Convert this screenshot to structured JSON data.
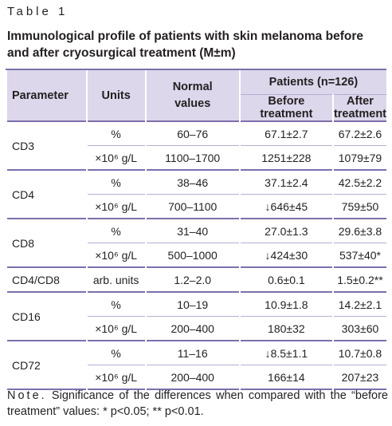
{
  "header": {
    "label": "Table 1",
    "title": "Immunological profile of patients with skin melanoma before and after cryosurgical treatment (M±m)"
  },
  "table": {
    "columns": {
      "parameter": "Parameter",
      "units": "Units",
      "normal": "Normal values",
      "patients": "Patients (n=126)",
      "before": "Before treatment",
      "after": "After treatment"
    },
    "groups": [
      {
        "parameter": "CD3",
        "rows": [
          [
            "%",
            "60–76",
            "67.1±2.7",
            "67.2±2.6"
          ],
          [
            "×10⁶ g/L",
            "1100–1700",
            "1251±228",
            "1079±79"
          ]
        ]
      },
      {
        "parameter": "CD4",
        "rows": [
          [
            "%",
            "38–46",
            "37.1±2.4",
            "42.5±2.2"
          ],
          [
            "×10⁶ g/L",
            "700–1100",
            "↓646±45",
            "759±50"
          ]
        ]
      },
      {
        "parameter": "CD8",
        "rows": [
          [
            "%",
            "31–40",
            "27.0±1.3",
            "29.6±3.8"
          ],
          [
            "×10⁶ g/L",
            "500–1000",
            "↓424±30",
            "537±40*"
          ]
        ]
      },
      {
        "parameter": "CD4/CD8",
        "rows": [
          [
            "arb. units",
            "1.2–2.0",
            "0.6±0.1",
            "1.5±0.2**"
          ]
        ]
      },
      {
        "parameter": "CD16",
        "rows": [
          [
            "%",
            "10–19",
            "10.9±1.8",
            "14.2±2.1"
          ],
          [
            "×10⁶ g/L",
            "200–400",
            "180±32",
            "303±60"
          ]
        ]
      },
      {
        "parameter": "CD72",
        "rows": [
          [
            "%",
            "11–16",
            "↓8.5±1.1",
            "10.7±0.8"
          ],
          [
            "×10⁶ g/L",
            "200–400",
            "166±14",
            "207±23"
          ]
        ]
      }
    ]
  },
  "note": {
    "label": "Note.",
    "text": "Significance of the differences when compared with the “before treatment” values: * p<0.05; ** p<0.01."
  }
}
